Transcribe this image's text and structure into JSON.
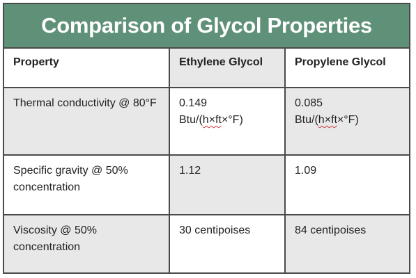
{
  "title": "Comparison of Glycol Properties",
  "header": {
    "property": "Property",
    "ethylene": "Ethylene Glycol",
    "propylene": "Propylene Glycol"
  },
  "rows": [
    {
      "property": "Thermal conductivity @ 80°F",
      "ethylene_value": "0.149",
      "ethylene_unit_pre": "Btu/(",
      "ethylene_unit_squig": "h×ft",
      "ethylene_unit_post": "×°F)",
      "propylene_value": "0.085",
      "propylene_unit_pre": "Btu/(",
      "propylene_unit_squig": "h×ft",
      "propylene_unit_post": "×°F)"
    },
    {
      "property": "Specific gravity @ 50% concentration",
      "ethylene": "1.12",
      "propylene": "1.09"
    },
    {
      "property": "Viscosity @ 50% concentration",
      "ethylene": "30 centipoises",
      "propylene": "84 centipoises"
    }
  ],
  "colors": {
    "title_bg": "#5e9178",
    "title_text": "#ffffff",
    "shaded_cell": "#e8e8e8",
    "border": "#4a4a4a"
  }
}
